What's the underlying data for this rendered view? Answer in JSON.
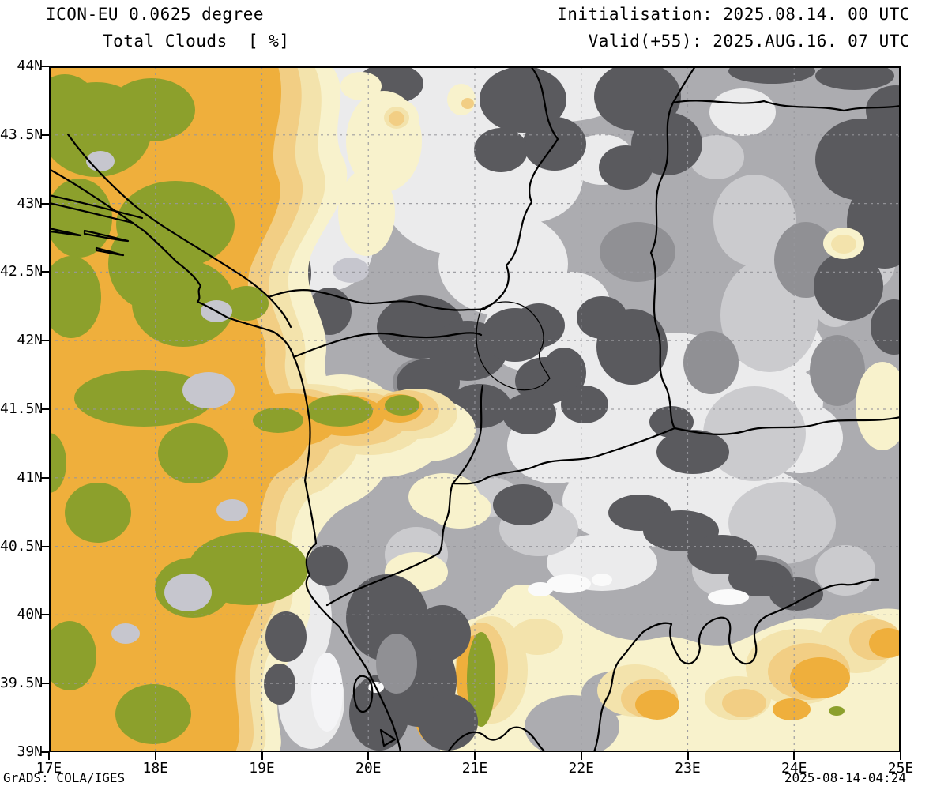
{
  "header": {
    "model_line": "ICON-EU 0.0625 degree",
    "product_line": "Total Clouds  [ %]",
    "init_line": "Initialisation: 2025.08.14. 00 UTC",
    "valid_line": "Valid(+55): 2025.AUG.16. 07 UTC"
  },
  "footer": {
    "generator": "GrADS: COLA/IGES",
    "created": "2025-08-14-04:24"
  },
  "axes": {
    "lat_labels": [
      "44N",
      "43.5N",
      "43N",
      "42.5N",
      "42N",
      "41.5N",
      "41N",
      "40.5N",
      "40N",
      "39.5N",
      "39N"
    ],
    "lon_labels": [
      "17E",
      "18E",
      "19E",
      "20E",
      "21E",
      "22E",
      "23E",
      "24E",
      "25E"
    ]
  },
  "map": {
    "extent": {
      "lon_min": "17E",
      "lon_max": "25E",
      "lat_min": "39N",
      "lat_max": "44N"
    },
    "grid": {
      "lat_interval_deg": 0.5,
      "lon_interval_deg": 1
    },
    "palette": {
      "clear_olive": "#8CA02C",
      "sunny_orange": "#EFAF3C",
      "tan": "#F2CE84",
      "cream": "#F3E3AC",
      "pale_yellow": "#F8F2CC",
      "light_lavender": "#C6C6CE",
      "overcast_light": "#EBEBEC",
      "light_gray": "#CBCBCE",
      "medium_gray": "#ACACB0",
      "medium_dark_gray": "#909094",
      "dark_gray": "#5A5A5E",
      "bright_white": "#FAFAFA",
      "border_black": "#000000"
    }
  }
}
